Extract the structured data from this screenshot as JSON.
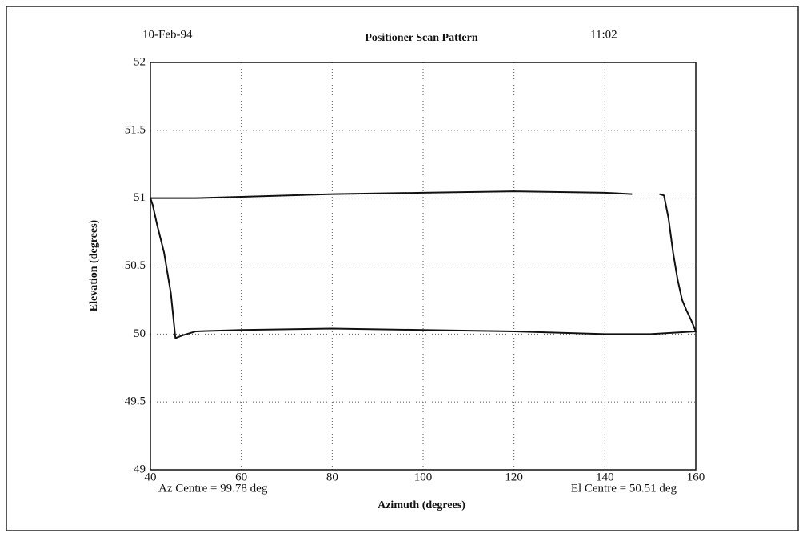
{
  "chart_data": {
    "type": "line",
    "title": "Positioner Scan Pattern",
    "date": "10-Feb-94",
    "time": "11:02",
    "xlabel": "Azimuth (degrees)",
    "ylabel": "Elevation (degrees)",
    "annotations": [
      "Az Centre = 99.78 deg",
      "El Centre = 50.51 deg"
    ],
    "xlim": [
      40,
      160
    ],
    "xticks": [
      40,
      60,
      80,
      100,
      120,
      140,
      160
    ],
    "ylim": [
      49,
      52
    ],
    "yticks": [
      49,
      49.5,
      50,
      50.5,
      51,
      51.5,
      52
    ],
    "grid": true,
    "series": [
      {
        "color": "#111111",
        "x": [
          40,
          50,
          60,
          80,
          100,
          120,
          140,
          146,
          149,
          152,
          153,
          154,
          155,
          156,
          157,
          158,
          159,
          160,
          150,
          140,
          120,
          100,
          80,
          60,
          50,
          47,
          45.5,
          44.5,
          43,
          41.5,
          40.5,
          40
        ],
        "values": [
          51.0,
          51.0,
          51.01,
          51.03,
          51.04,
          51.05,
          51.04,
          51.03,
          null,
          51.03,
          51.02,
          50.85,
          50.6,
          50.4,
          50.25,
          50.17,
          50.1,
          50.02,
          50.0,
          50.0,
          50.02,
          50.03,
          50.04,
          50.03,
          50.02,
          49.99,
          49.97,
          50.3,
          50.6,
          50.8,
          50.95,
          51.0
        ]
      }
    ]
  }
}
